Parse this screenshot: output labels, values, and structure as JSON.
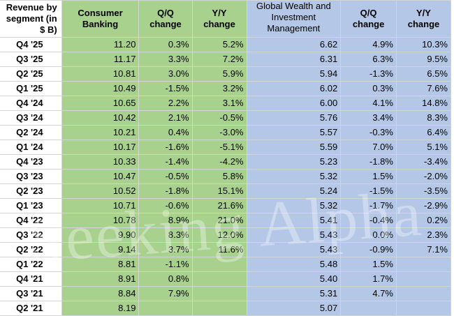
{
  "headers": {
    "label": "Revenue by segment (in $ B)",
    "cb_value": "Consumer Banking",
    "cb_qoq": "Q/Q change",
    "cb_yoy": "Y/Y change",
    "gw_value": "Global Wealth and Investment Management",
    "gw_qoq": "Q/Q change",
    "gw_yoy": "Y/Y change"
  },
  "rows": [
    {
      "label": "Q4 '25",
      "cb": "11.20",
      "cb_qoq": "0.3%",
      "cb_yoy": "5.2%",
      "gw": "6.62",
      "gw_qoq": "4.9%",
      "gw_yoy": "10.3%"
    },
    {
      "label": "Q3 '25",
      "cb": "11.17",
      "cb_qoq": "3.3%",
      "cb_yoy": "7.2%",
      "gw": "6.31",
      "gw_qoq": "6.3%",
      "gw_yoy": "9.5%"
    },
    {
      "label": "Q2 '25",
      "cb": "10.81",
      "cb_qoq": "3.0%",
      "cb_yoy": "5.9%",
      "gw": "5.94",
      "gw_qoq": "-1.3%",
      "gw_yoy": "6.5%"
    },
    {
      "label": "Q1 '25",
      "cb": "10.49",
      "cb_qoq": "-1.5%",
      "cb_yoy": "3.2%",
      "gw": "6.02",
      "gw_qoq": "0.3%",
      "gw_yoy": "7.6%"
    },
    {
      "label": "Q4 '24",
      "cb": "10.65",
      "cb_qoq": "2.2%",
      "cb_yoy": "3.1%",
      "gw": "6.00",
      "gw_qoq": "4.1%",
      "gw_yoy": "14.8%"
    },
    {
      "label": "Q3 '24",
      "cb": "10.42",
      "cb_qoq": "2.1%",
      "cb_yoy": "-0.5%",
      "gw": "5.76",
      "gw_qoq": "3.4%",
      "gw_yoy": "8.3%"
    },
    {
      "label": "Q2 '24",
      "cb": "10.21",
      "cb_qoq": "0.4%",
      "cb_yoy": "-3.0%",
      "gw": "5.57",
      "gw_qoq": "-0.3%",
      "gw_yoy": "6.4%"
    },
    {
      "label": "Q1 '24",
      "cb": "10.17",
      "cb_qoq": "-1.6%",
      "cb_yoy": "-5.1%",
      "gw": "5.59",
      "gw_qoq": "7.0%",
      "gw_yoy": "5.1%"
    },
    {
      "label": "Q4 '23",
      "cb": "10.33",
      "cb_qoq": "-1.4%",
      "cb_yoy": "-4.2%",
      "gw": "5.23",
      "gw_qoq": "-1.8%",
      "gw_yoy": "-3.4%"
    },
    {
      "label": "Q3 '23",
      "cb": "10.47",
      "cb_qoq": "-0.5%",
      "cb_yoy": "5.8%",
      "gw": "5.32",
      "gw_qoq": "1.5%",
      "gw_yoy": "-2.0%"
    },
    {
      "label": "Q2 '23",
      "cb": "10.52",
      "cb_qoq": "-1.8%",
      "cb_yoy": "15.1%",
      "gw": "5.24",
      "gw_qoq": "-1.5%",
      "gw_yoy": "-3.5%"
    },
    {
      "label": "Q1 '23",
      "cb": "10.71",
      "cb_qoq": "-0.6%",
      "cb_yoy": "21.6%",
      "gw": "5.32",
      "gw_qoq": "-1.7%",
      "gw_yoy": "-2.9%"
    },
    {
      "label": "Q4 '22",
      "cb": "10.78",
      "cb_qoq": "8.9%",
      "cb_yoy": "21.0%",
      "gw": "5.41",
      "gw_qoq": "-0.4%",
      "gw_yoy": "0.2%"
    },
    {
      "label": "Q3 '22",
      "cb": "9.90",
      "cb_qoq": "8.3%",
      "cb_yoy": "12.0%",
      "gw": "5.43",
      "gw_qoq": "0.0%",
      "gw_yoy": "2.3%"
    },
    {
      "label": "Q2 '22",
      "cb": "9.14",
      "cb_qoq": "3.7%",
      "cb_yoy": "11.6%",
      "gw": "5.43",
      "gw_qoq": "-0.9%",
      "gw_yoy": "7.1%"
    },
    {
      "label": "Q1 '22",
      "cb": "8.81",
      "cb_qoq": "-1.1%",
      "cb_yoy": "",
      "gw": "5.48",
      "gw_qoq": "1.5%",
      "gw_yoy": ""
    },
    {
      "label": "Q4 '21",
      "cb": "8.91",
      "cb_qoq": "0.8%",
      "cb_yoy": "",
      "gw": "5.40",
      "gw_qoq": "1.7%",
      "gw_yoy": ""
    },
    {
      "label": "Q3 '21",
      "cb": "8.84",
      "cb_qoq": "7.9%",
      "cb_yoy": "",
      "gw": "5.31",
      "gw_qoq": "4.7%",
      "gw_yoy": ""
    },
    {
      "label": "Q2 '21",
      "cb": "8.19",
      "cb_qoq": "",
      "cb_yoy": "",
      "gw": "5.07",
      "gw_qoq": "",
      "gw_yoy": ""
    }
  ],
  "watermark": "Seeking Alpha",
  "colors": {
    "consumer_banking_fill": "#a9d18e",
    "wealth_management_fill": "#b4c7e7",
    "gridline": "#d4d4d4"
  }
}
